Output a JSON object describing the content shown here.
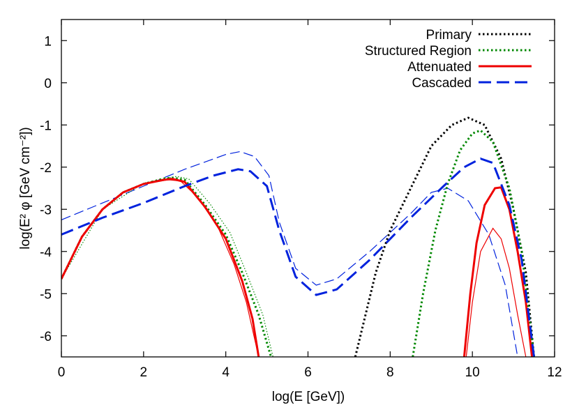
{
  "chart_data": {
    "type": "line",
    "xlabel": "log(E [GeV])",
    "ylabel": "log(E² φ [GeV cm⁻²])",
    "xlim": [
      0,
      12
    ],
    "ylim": [
      -6.5,
      1.5
    ],
    "xticks": [
      0,
      2,
      4,
      6,
      8,
      10,
      12
    ],
    "yticks": [
      1,
      0,
      -1,
      -2,
      -3,
      -4,
      -5,
      -6
    ],
    "grid": false,
    "legend_position": "top-right",
    "series": [
      {
        "name": "Primary",
        "color": "#000000",
        "style": "dotted",
        "points": [
          [
            7.15,
            -6.5
          ],
          [
            7.4,
            -5.5
          ],
          [
            7.65,
            -4.5
          ],
          [
            8.0,
            -3.5
          ],
          [
            8.5,
            -2.5
          ],
          [
            9.0,
            -1.5
          ],
          [
            9.5,
            -1.0
          ],
          [
            9.9,
            -0.83
          ],
          [
            10.3,
            -1.0
          ],
          [
            10.7,
            -1.8
          ],
          [
            11.0,
            -3.0
          ],
          [
            11.3,
            -4.5
          ],
          [
            11.5,
            -6.5
          ]
        ]
      },
      {
        "name": "Structured Region",
        "color": "#008800",
        "style": "dotted",
        "points": [
          [
            0,
            -4.65
          ],
          [
            0.5,
            -3.65
          ],
          [
            1.0,
            -3.0
          ],
          [
            1.5,
            -2.6
          ],
          [
            2.0,
            -2.4
          ],
          [
            2.5,
            -2.27
          ],
          [
            2.7,
            -2.25
          ],
          [
            3.0,
            -2.3
          ],
          [
            3.5,
            -2.9
          ],
          [
            4.0,
            -3.6
          ],
          [
            4.4,
            -4.5
          ],
          [
            4.8,
            -5.5
          ],
          [
            5.1,
            -6.5
          ]
        ]
      },
      {
        "name": "Structured Region",
        "color": "#008800",
        "style": "dotted",
        "points": [
          [
            8.55,
            -6.5
          ],
          [
            8.8,
            -5.0
          ],
          [
            9.1,
            -3.5
          ],
          [
            9.4,
            -2.4
          ],
          [
            9.7,
            -1.6
          ],
          [
            10.0,
            -1.2
          ],
          [
            10.2,
            -1.13
          ],
          [
            10.5,
            -1.4
          ],
          [
            10.9,
            -2.5
          ],
          [
            11.2,
            -4.0
          ],
          [
            11.5,
            -6.5
          ]
        ]
      },
      {
        "name": "Attenuated",
        "color": "#ee0000",
        "style": "solid",
        "points": [
          [
            0,
            -4.65
          ],
          [
            0.5,
            -3.65
          ],
          [
            1.0,
            -3.0
          ],
          [
            1.5,
            -2.6
          ],
          [
            2.0,
            -2.4
          ],
          [
            2.5,
            -2.3
          ],
          [
            2.7,
            -2.28
          ],
          [
            3.0,
            -2.35
          ],
          [
            3.5,
            -2.95
          ],
          [
            4.0,
            -3.7
          ],
          [
            4.4,
            -4.7
          ],
          [
            4.65,
            -5.6
          ],
          [
            4.8,
            -6.5
          ]
        ]
      },
      {
        "name": "Attenuated",
        "color": "#ee0000",
        "style": "solid",
        "points": [
          [
            9.8,
            -6.5
          ],
          [
            9.95,
            -5.0
          ],
          [
            10.1,
            -3.8
          ],
          [
            10.3,
            -2.9
          ],
          [
            10.55,
            -2.5
          ],
          [
            10.7,
            -2.48
          ],
          [
            10.9,
            -3.0
          ],
          [
            11.1,
            -4.0
          ],
          [
            11.3,
            -5.2
          ],
          [
            11.45,
            -6.5
          ]
        ]
      },
      {
        "name": "Cascaded",
        "color": "#0022dd",
        "style": "dashed",
        "points": [
          [
            0,
            -3.6
          ],
          [
            1.0,
            -3.2
          ],
          [
            2.0,
            -2.85
          ],
          [
            3.0,
            -2.45
          ],
          [
            3.7,
            -2.2
          ],
          [
            4.3,
            -2.05
          ],
          [
            4.6,
            -2.1
          ],
          [
            5.0,
            -2.45
          ],
          [
            5.3,
            -3.5
          ],
          [
            5.7,
            -4.6
          ],
          [
            6.2,
            -5.03
          ],
          [
            6.7,
            -4.9
          ],
          [
            7.5,
            -4.2
          ],
          [
            8.5,
            -3.2
          ],
          [
            9.3,
            -2.45
          ],
          [
            9.8,
            -2.0
          ],
          [
            10.2,
            -1.8
          ],
          [
            10.5,
            -1.9
          ],
          [
            10.9,
            -2.9
          ],
          [
            11.2,
            -4.2
          ],
          [
            11.5,
            -6.5
          ]
        ]
      }
    ],
    "thin_series": [
      {
        "color": "#0022dd",
        "style": "dashed",
        "points": [
          [
            0,
            -3.25
          ],
          [
            1.0,
            -2.85
          ],
          [
            2.0,
            -2.45
          ],
          [
            3.0,
            -2.05
          ],
          [
            4.0,
            -1.7
          ],
          [
            4.35,
            -1.63
          ],
          [
            4.7,
            -1.75
          ],
          [
            5.05,
            -2.2
          ],
          [
            5.3,
            -3.3
          ],
          [
            5.7,
            -4.4
          ],
          [
            6.2,
            -4.8
          ],
          [
            6.7,
            -4.65
          ],
          [
            7.5,
            -4.0
          ],
          [
            8.5,
            -3.1
          ],
          [
            9.0,
            -2.6
          ],
          [
            9.4,
            -2.5
          ],
          [
            9.9,
            -2.8
          ],
          [
            10.4,
            -3.6
          ],
          [
            10.8,
            -4.8
          ],
          [
            11.1,
            -6.5
          ]
        ]
      },
      {
        "color": "#ee0000",
        "style": "solid",
        "points": [
          [
            0,
            -4.65
          ],
          [
            0.5,
            -3.65
          ],
          [
            1.0,
            -3.0
          ],
          [
            1.5,
            -2.6
          ],
          [
            2.0,
            -2.4
          ],
          [
            2.6,
            -2.3
          ],
          [
            2.9,
            -2.33
          ],
          [
            3.3,
            -2.7
          ],
          [
            3.8,
            -3.4
          ],
          [
            4.2,
            -4.3
          ],
          [
            4.5,
            -5.2
          ],
          [
            4.8,
            -6.5
          ]
        ]
      },
      {
        "color": "#ee0000",
        "style": "solid",
        "points": [
          [
            9.85,
            -6.5
          ],
          [
            10.0,
            -5.2
          ],
          [
            10.2,
            -4.0
          ],
          [
            10.5,
            -3.45
          ],
          [
            10.7,
            -3.7
          ],
          [
            10.9,
            -4.4
          ],
          [
            11.1,
            -5.5
          ],
          [
            11.3,
            -6.5
          ]
        ]
      },
      {
        "color": "#008800",
        "style": "dotted",
        "points": [
          [
            0,
            -4.65
          ],
          [
            1.0,
            -3.0
          ],
          [
            2.0,
            -2.38
          ],
          [
            2.8,
            -2.22
          ],
          [
            3.1,
            -2.28
          ],
          [
            3.6,
            -2.85
          ],
          [
            4.1,
            -3.55
          ],
          [
            4.5,
            -4.5
          ],
          [
            4.9,
            -5.5
          ],
          [
            5.15,
            -6.5
          ]
        ]
      }
    ],
    "legend": [
      "Primary",
      "Structured Region",
      "Attenuated",
      "Cascaded"
    ]
  }
}
